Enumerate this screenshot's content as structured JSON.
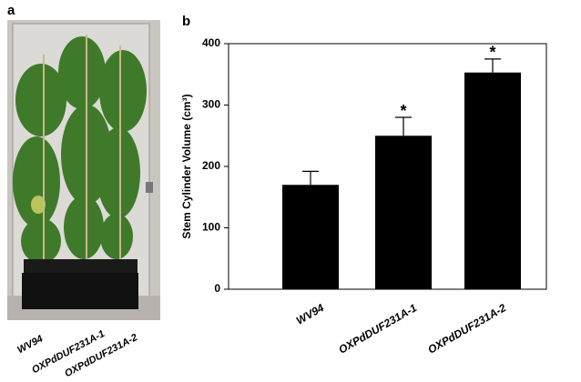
{
  "photo_panel": {
    "panel_label": "a",
    "labels": [
      "WV94",
      "OXPdDUF231A-1",
      "OXPdDUF231A-2"
    ]
  },
  "chart_data": {
    "type": "bar",
    "panel_label": "b",
    "y_label": "Stem Cylinder Volume (cm³)",
    "categories": [
      "WV94",
      "OXPdDUF231A-1",
      "OXPdDUF231A-2"
    ],
    "values": [
      170,
      250,
      353
    ],
    "errors": [
      22,
      30,
      22
    ],
    "significance": [
      null,
      "*",
      "*"
    ],
    "color": "#000000",
    "ylim": [
      0,
      400
    ],
    "yticks": [
      0,
      100,
      200,
      300,
      400
    ]
  }
}
